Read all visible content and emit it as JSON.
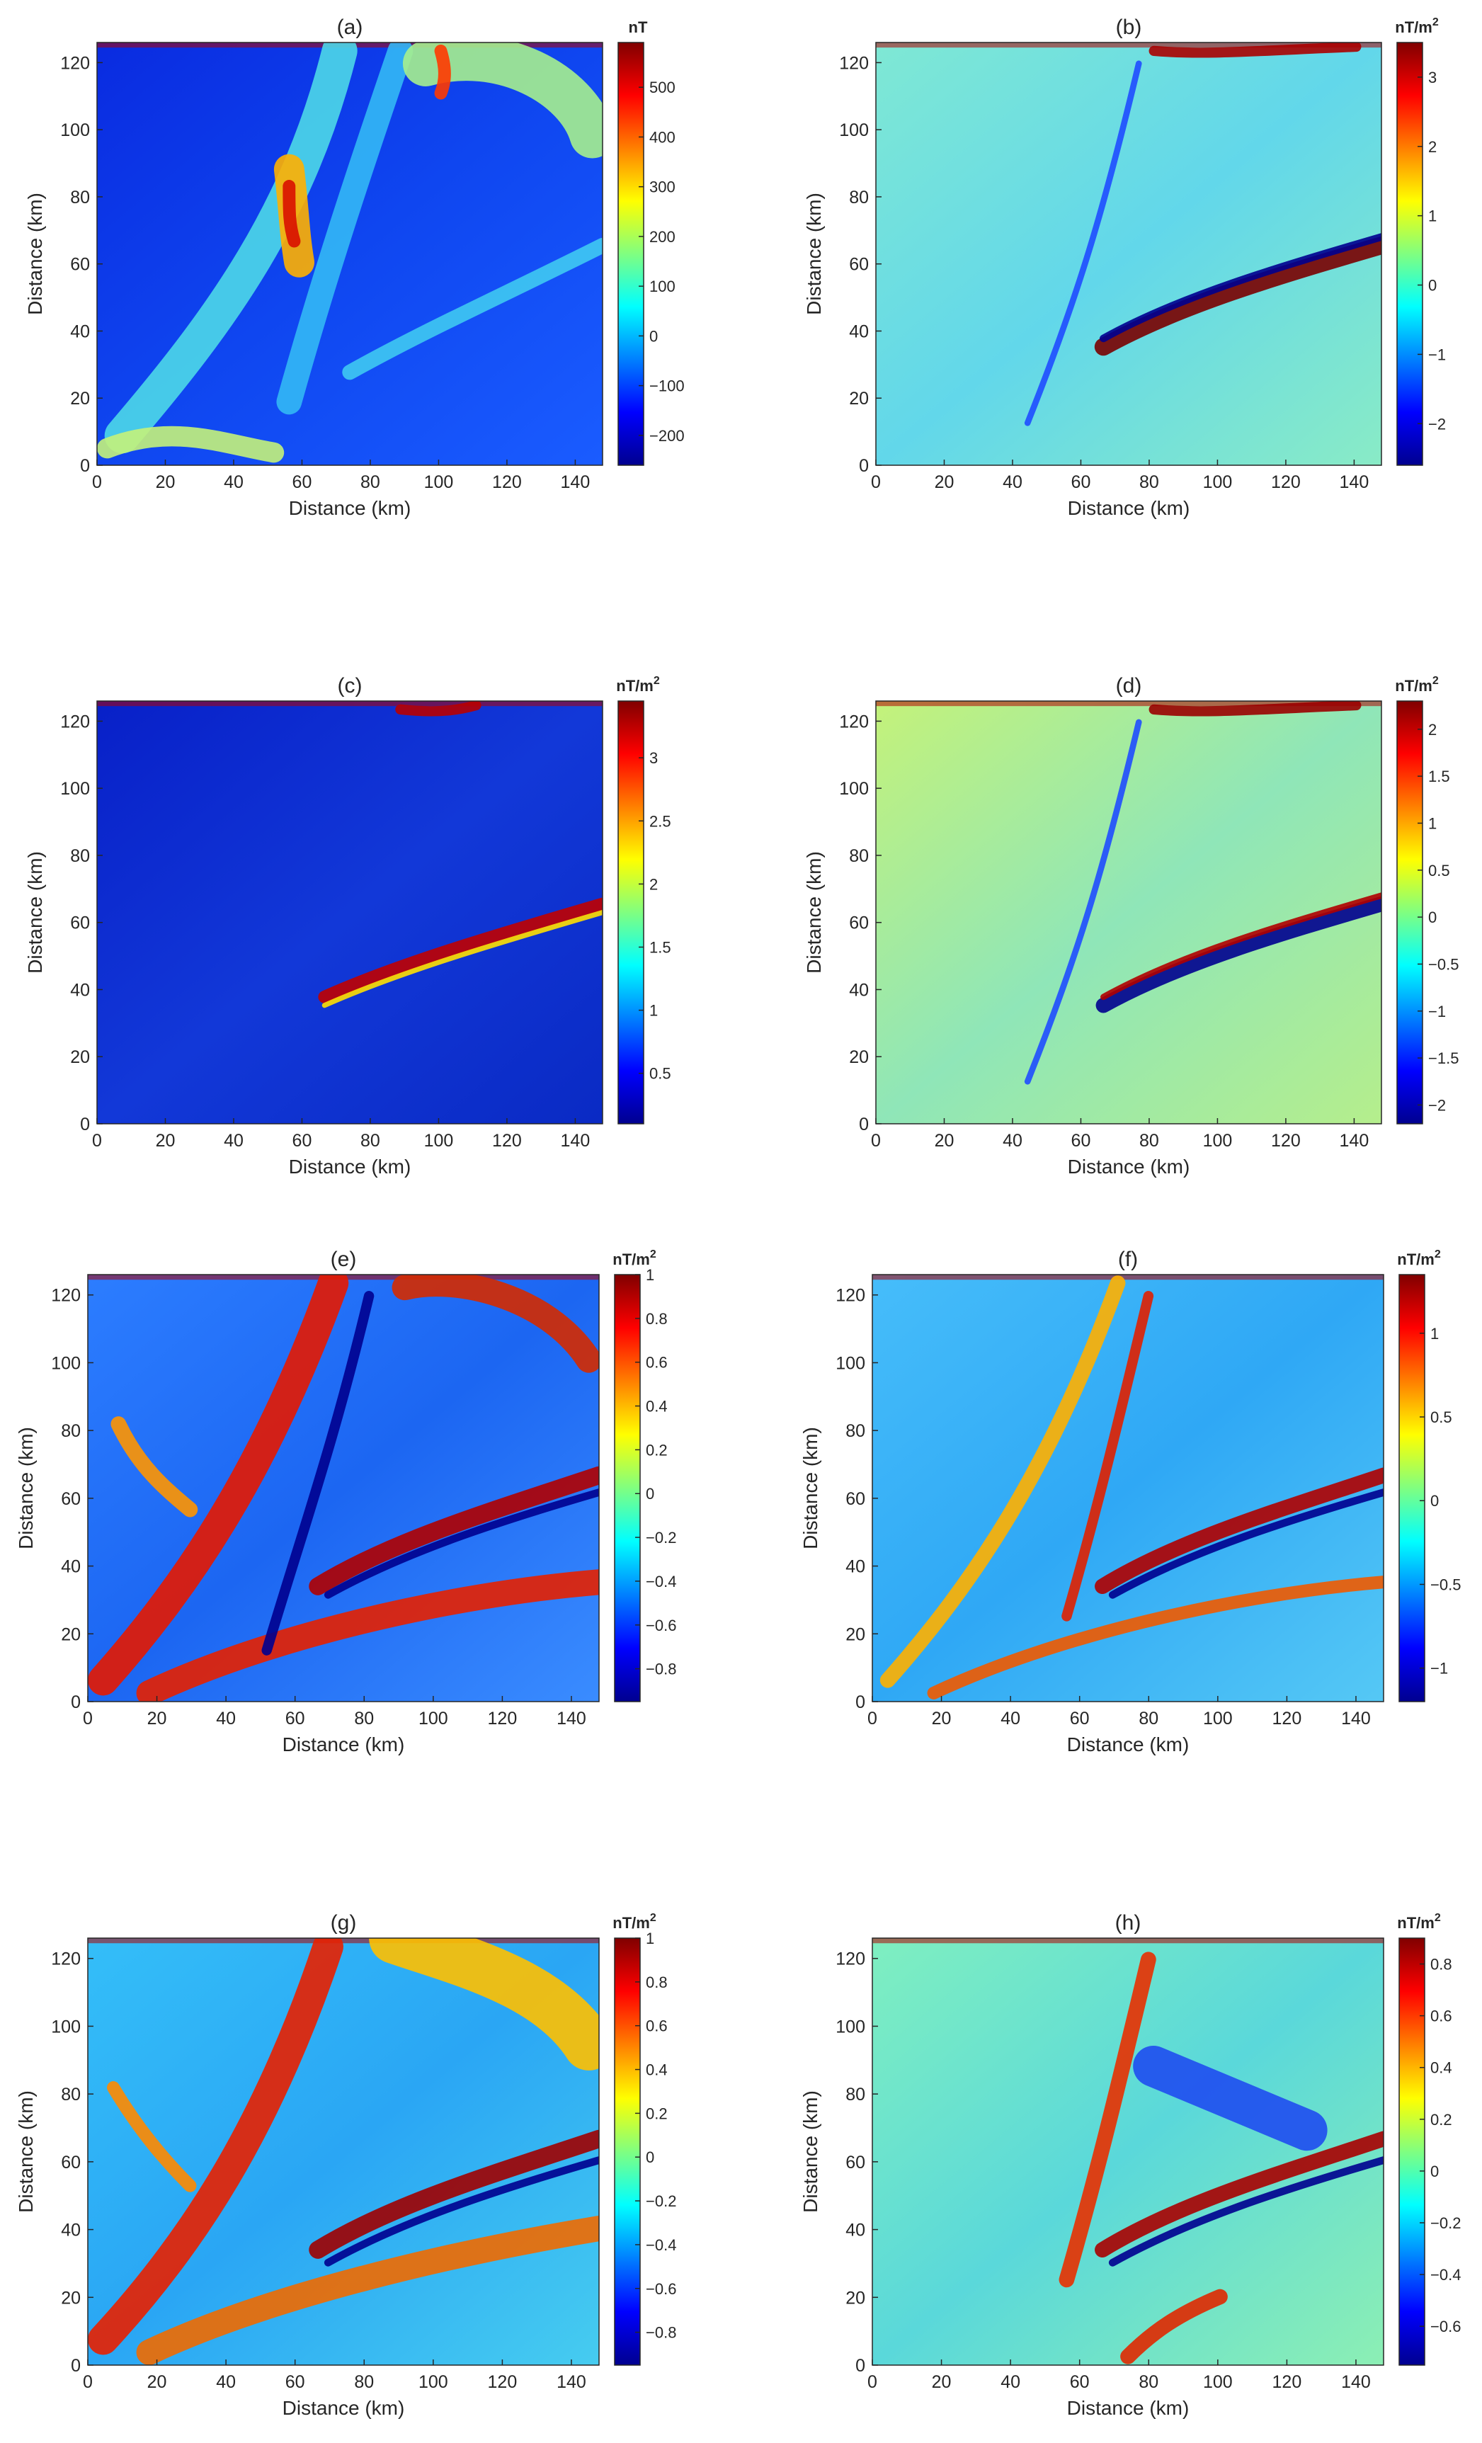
{
  "chart_data": [
    {
      "type": "heatmap",
      "title": "(a)",
      "colormap": "jet",
      "xlabel": "Distance (km)",
      "ylabel": "Distance (km)",
      "xlim": [
        0,
        148
      ],
      "ylim": [
        0,
        126
      ],
      "xticks": [
        0,
        20,
        40,
        60,
        80,
        100,
        120,
        140
      ],
      "yticks": [
        0,
        20,
        40,
        60,
        80,
        100,
        120
      ],
      "colorbar": {
        "unit": "nT",
        "unit_sup": "",
        "range": [
          -260,
          590
        ],
        "ticks": [
          -200,
          -100,
          0,
          100,
          200,
          300,
          400,
          500
        ]
      }
    },
    {
      "type": "heatmap",
      "title": "(b)",
      "colormap": "jet",
      "xlabel": "Distance (km)",
      "ylabel": "Distance (km)",
      "xlim": [
        0,
        148
      ],
      "ylim": [
        0,
        126
      ],
      "xticks": [
        0,
        20,
        40,
        60,
        80,
        100,
        120,
        140
      ],
      "yticks": [
        0,
        20,
        40,
        60,
        80,
        100,
        120
      ],
      "colorbar": {
        "unit": "nT/m",
        "unit_sup": "2",
        "range": [
          -2.6,
          3.5
        ],
        "ticks": [
          -2,
          -1,
          0,
          1,
          2,
          3
        ]
      }
    },
    {
      "type": "heatmap",
      "title": "(c)",
      "colormap": "jet",
      "xlabel": "Distance (km)",
      "ylabel": "Distance (km)",
      "xlim": [
        0,
        148
      ],
      "ylim": [
        0,
        126
      ],
      "xticks": [
        0,
        20,
        40,
        60,
        80,
        100,
        120,
        140
      ],
      "yticks": [
        0,
        20,
        40,
        60,
        80,
        100,
        120
      ],
      "colorbar": {
        "unit": "nT/m",
        "unit_sup": "2",
        "range": [
          0.1,
          3.45
        ],
        "ticks": [
          0.5,
          1,
          1.5,
          2,
          2.5,
          3
        ]
      }
    },
    {
      "type": "heatmap",
      "title": "(d)",
      "colormap": "jet",
      "xlabel": "Distance (km)",
      "ylabel": "Distance (km)",
      "xlim": [
        0,
        148
      ],
      "ylim": [
        0,
        126
      ],
      "xticks": [
        0,
        20,
        40,
        60,
        80,
        100,
        120,
        140
      ],
      "yticks": [
        0,
        20,
        40,
        60,
        80,
        100,
        120
      ],
      "colorbar": {
        "unit": "nT/m",
        "unit_sup": "2",
        "range": [
          -2.2,
          2.3
        ],
        "ticks": [
          -2,
          -1.5,
          -1,
          -0.5,
          0,
          0.5,
          1,
          1.5,
          2
        ]
      }
    },
    {
      "type": "heatmap",
      "title": "(e)",
      "colormap": "jet",
      "xlabel": "Distance (km)",
      "ylabel": "Distance (km)",
      "xlim": [
        0,
        148
      ],
      "ylim": [
        0,
        126
      ],
      "xticks": [
        0,
        20,
        40,
        60,
        80,
        100,
        120,
        140
      ],
      "yticks": [
        0,
        20,
        40,
        60,
        80,
        100,
        120
      ],
      "colorbar": {
        "unit": "nT/m",
        "unit_sup": "2",
        "range": [
          -0.95,
          1.0
        ],
        "ticks": [
          -0.8,
          -0.6,
          -0.4,
          -0.2,
          0,
          0.2,
          0.4,
          0.6,
          0.8,
          1
        ]
      }
    },
    {
      "type": "heatmap",
      "title": "(f)",
      "colormap": "jet",
      "xlabel": "Distance (km)",
      "ylabel": "Distance (km)",
      "xlim": [
        0,
        148
      ],
      "ylim": [
        0,
        126
      ],
      "xticks": [
        0,
        20,
        40,
        60,
        80,
        100,
        120,
        140
      ],
      "yticks": [
        0,
        20,
        40,
        60,
        80,
        100,
        120
      ],
      "colorbar": {
        "unit": "nT/m",
        "unit_sup": "2",
        "range": [
          -1.2,
          1.35
        ],
        "ticks": [
          -1,
          -0.5,
          0,
          0.5,
          1
        ]
      }
    },
    {
      "type": "heatmap",
      "title": "(g)",
      "colormap": "jet",
      "xlabel": "Distance (km)",
      "ylabel": "Distance (km)",
      "xlim": [
        0,
        148
      ],
      "ylim": [
        0,
        126
      ],
      "xticks": [
        0,
        20,
        40,
        60,
        80,
        100,
        120,
        140
      ],
      "yticks": [
        0,
        20,
        40,
        60,
        80,
        100,
        120
      ],
      "colorbar": {
        "unit": "nT/m",
        "unit_sup": "2",
        "range": [
          -0.95,
          1.0
        ],
        "ticks": [
          -0.8,
          -0.6,
          -0.4,
          -0.2,
          0,
          0.2,
          0.4,
          0.6,
          0.8,
          1
        ]
      }
    },
    {
      "type": "heatmap",
      "title": "(h)",
      "colormap": "jet",
      "xlabel": "Distance (km)",
      "ylabel": "Distance (km)",
      "xlim": [
        0,
        148
      ],
      "ylim": [
        0,
        126
      ],
      "xticks": [
        0,
        20,
        40,
        60,
        80,
        100,
        120,
        140
      ],
      "yticks": [
        0,
        20,
        40,
        60,
        80,
        100,
        120
      ],
      "colorbar": {
        "unit": "nT/m",
        "unit_sup": "2",
        "range": [
          -0.75,
          0.9
        ],
        "ticks": [
          -0.6,
          -0.4,
          -0.2,
          0,
          0.2,
          0.4,
          0.6,
          0.8
        ]
      }
    }
  ]
}
